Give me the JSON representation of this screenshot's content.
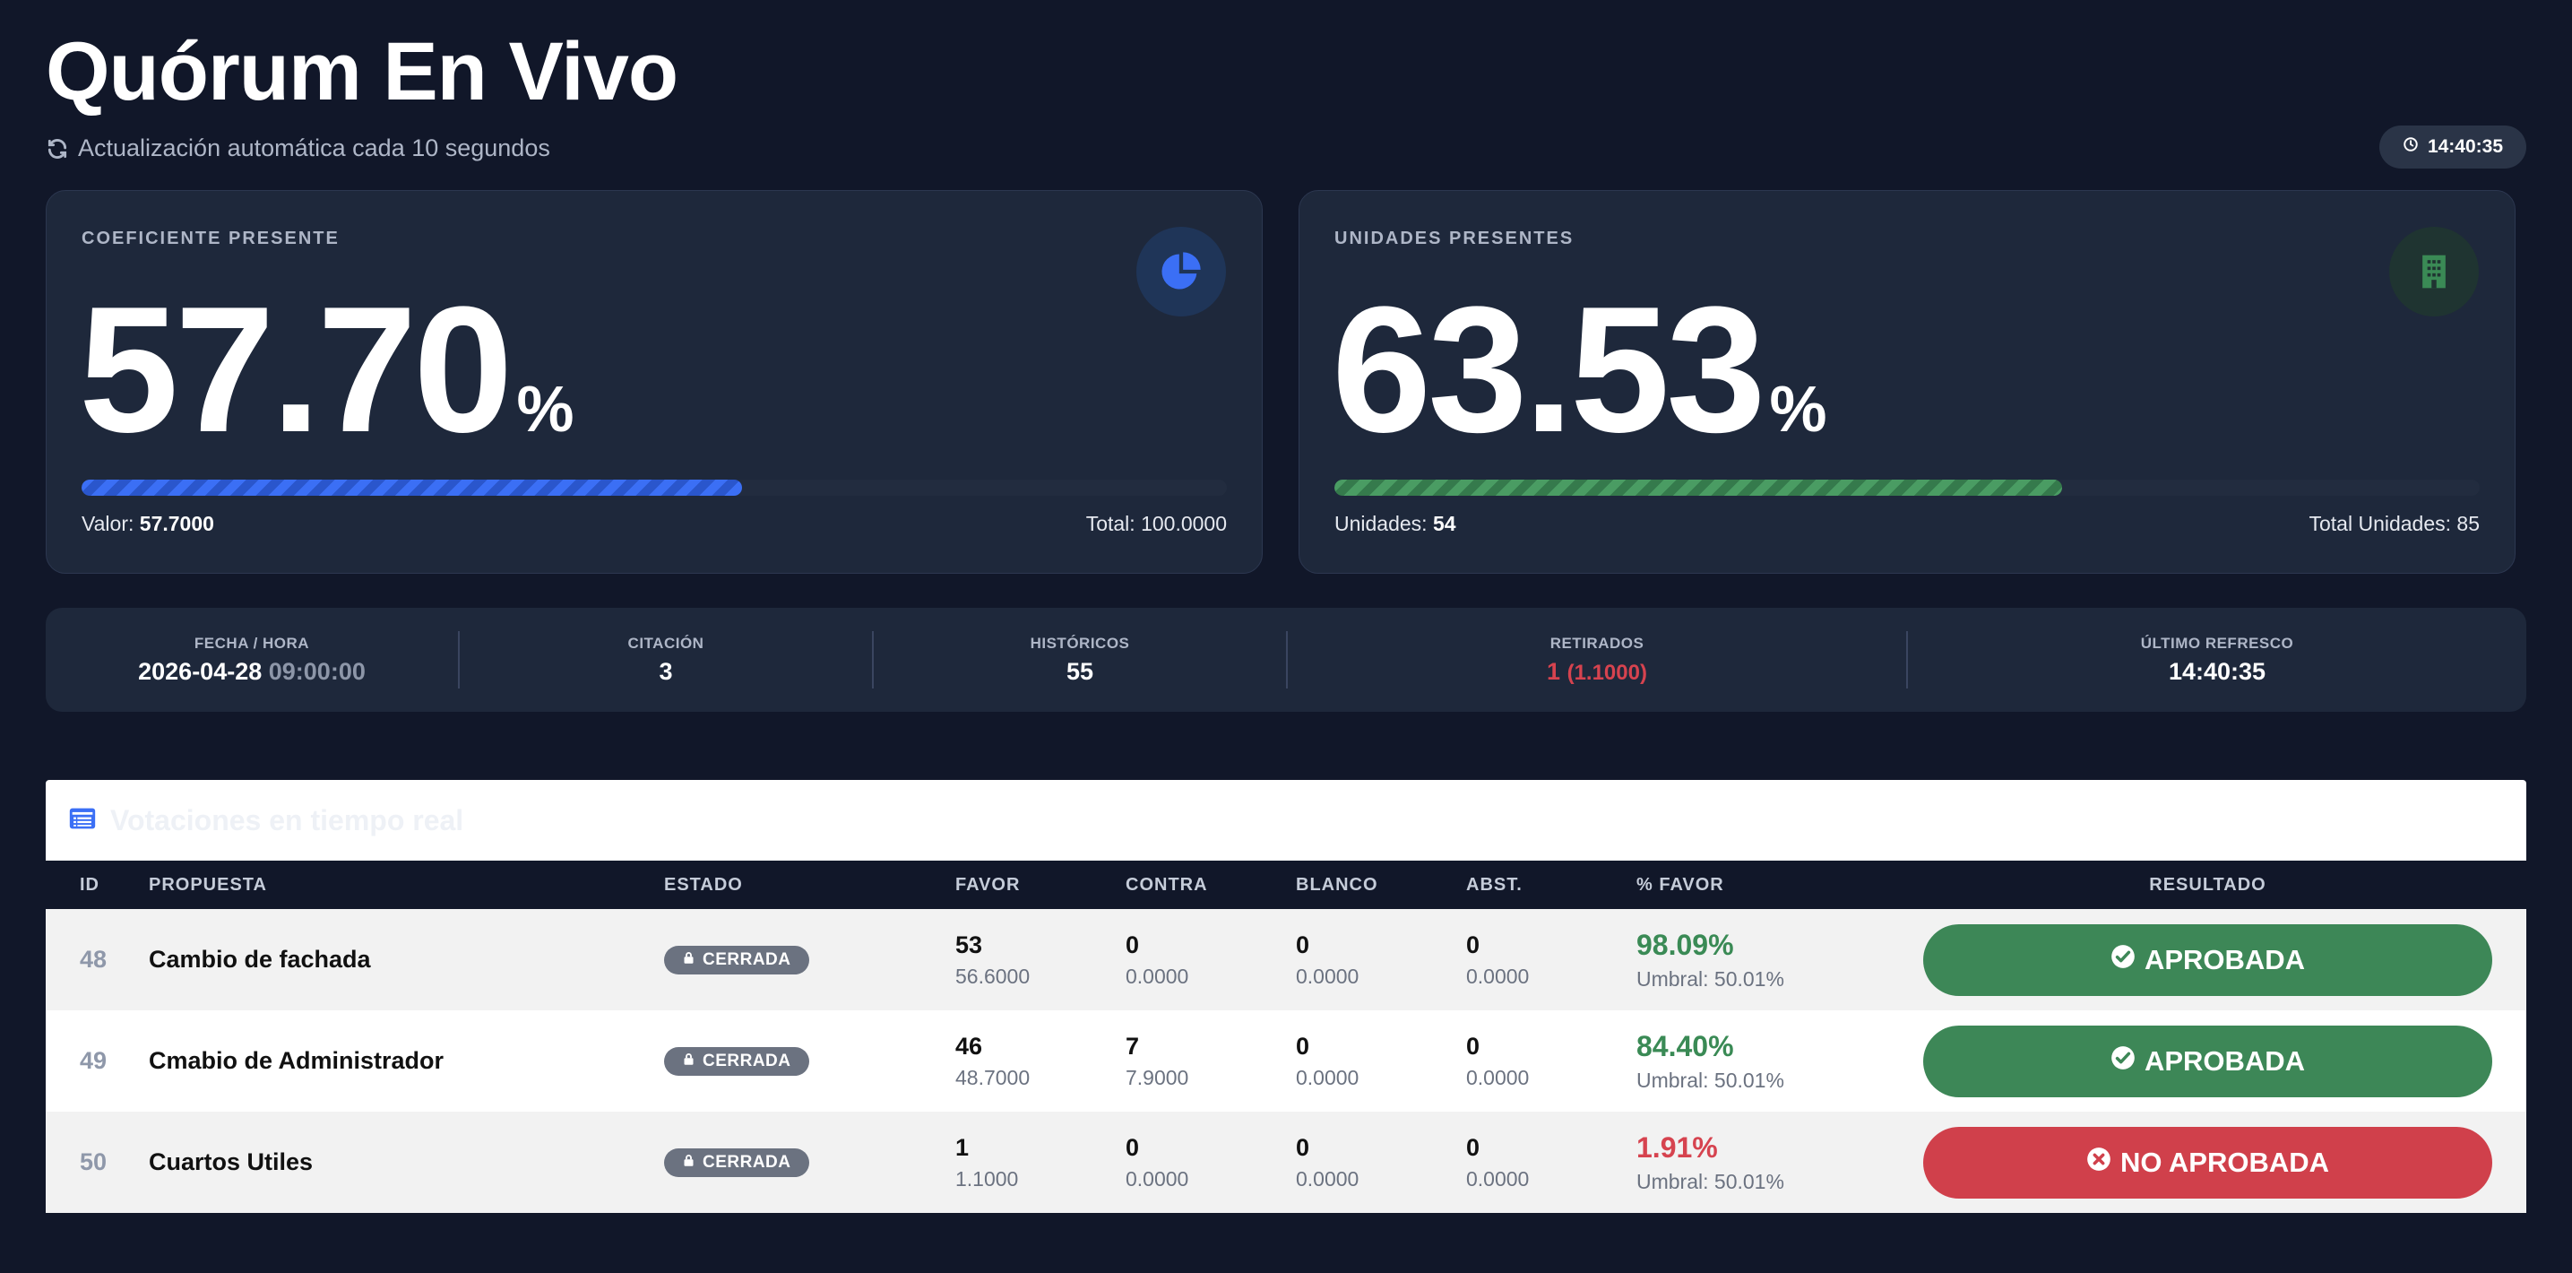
{
  "header": {
    "title": "Quórum En Vivo",
    "subtitle": "Actualización automática cada 10 segundos",
    "clock": "14:40:35"
  },
  "cards": {
    "coef": {
      "label": "COEFICIENTE PRESENTE",
      "value": "57.70",
      "unit": "%",
      "progress_percent": 57.7,
      "left_label": "Valor: ",
      "left_value": "57.7000",
      "right_text": "Total: 100.0000",
      "icon": "pie-chart-icon"
    },
    "units": {
      "label": "UNIDADES PRESENTES",
      "value": "63.53",
      "unit": "%",
      "progress_percent": 63.53,
      "left_label": "Unidades: ",
      "left_value": "54",
      "right_text": "Total Unidades: 85",
      "icon": "building-icon"
    }
  },
  "stats": {
    "fecha": {
      "label": "FECHA / HORA",
      "date": "2026-04-28",
      "time": "09:00:00"
    },
    "citacion": {
      "label": "CITACIÓN",
      "value": "3"
    },
    "historicos": {
      "label": "HISTÓRICOS",
      "value": "55"
    },
    "retirados": {
      "label": "RETIRADOS",
      "value": "1",
      "sub": "(1.1000)"
    },
    "refresco": {
      "label": "ÚLTIMO REFRESCO",
      "value": "14:40:35"
    }
  },
  "votes": {
    "title": "Votaciones en tiempo real",
    "columns": [
      "ID",
      "PROPUESTA",
      "ESTADO",
      "FAVOR",
      "CONTRA",
      "BLANCO",
      "ABST.",
      "% FAVOR",
      "RESULTADO"
    ],
    "rows": [
      {
        "id": "48",
        "propuesta": "Cambio de fachada",
        "estado": "CERRADA",
        "favor": "53",
        "favor_coef": "56.6000",
        "contra": "0",
        "contra_coef": "0.0000",
        "blanco": "0",
        "blanco_coef": "0.0000",
        "abst": "0",
        "abst_coef": "0.0000",
        "pct_favor": "98.09%",
        "umbral": "Umbral: 50.01%",
        "resultado": "APROBADA"
      },
      {
        "id": "49",
        "propuesta": "Cmabio de Administrador",
        "estado": "CERRADA",
        "favor": "46",
        "favor_coef": "48.7000",
        "contra": "7",
        "contra_coef": "7.9000",
        "blanco": "0",
        "blanco_coef": "0.0000",
        "abst": "0",
        "abst_coef": "0.0000",
        "pct_favor": "84.40%",
        "umbral": "Umbral: 50.01%",
        "resultado": "APROBADA"
      },
      {
        "id": "50",
        "propuesta": "Cuartos Utiles",
        "estado": "CERRADA",
        "favor": "1",
        "favor_coef": "1.1000",
        "contra": "0",
        "contra_coef": "0.0000",
        "blanco": "0",
        "blanco_coef": "0.0000",
        "abst": "0",
        "abst_coef": "0.0000",
        "pct_favor": "1.91%",
        "umbral": "Umbral: 50.01%",
        "resultado": "NO APROBADA"
      }
    ]
  },
  "colors": {
    "background": "#111729",
    "card": "#1e283b",
    "accent_blue": "#3b6ff5",
    "accent_green": "#3d8757",
    "danger_red": "#d0404b",
    "badge_gray": "#6b7280"
  }
}
